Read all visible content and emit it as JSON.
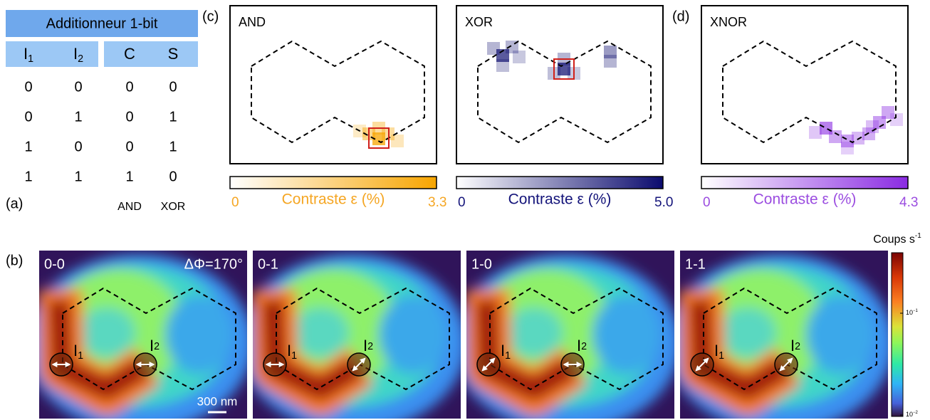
{
  "table": {
    "title": "Additionneur 1-bit",
    "headers": [
      {
        "main": "I",
        "sub": "1"
      },
      {
        "main": "I",
        "sub": "2"
      },
      {
        "main": "C"
      },
      {
        "main": "S"
      }
    ],
    "rows": [
      [
        "0",
        "0",
        "0",
        "0"
      ],
      [
        "0",
        "1",
        "0",
        "1"
      ],
      [
        "1",
        "0",
        "0",
        "1"
      ],
      [
        "1",
        "1",
        "1",
        "0"
      ]
    ],
    "footer": [
      "AND",
      "XOR"
    ],
    "label": "(a)"
  },
  "gate_maps": {
    "label_c": "(c)",
    "label_d": "(d)",
    "panels": [
      {
        "gate": "AND",
        "scale_min": "0",
        "axis_label": "Contraste ε (%)",
        "scale_max": "3.3"
      },
      {
        "gate": "XOR",
        "scale_min": "0",
        "axis_label": "Contraste ε (%)",
        "scale_max": "5.0"
      },
      {
        "gate": "XNOR",
        "scale_min": "0",
        "axis_label": "Contraste ε (%)",
        "scale_max": "4.3"
      }
    ]
  },
  "intensity_maps": {
    "label": "(b)",
    "phase": "ΔΦ=170°",
    "scale_bar": "300 nm",
    "input_labels": [
      {
        "main": "I",
        "sub": "1"
      },
      {
        "main": "I",
        "sub": "2"
      }
    ],
    "colorbar_title": {
      "main": "Coups s",
      "sup": "-1"
    },
    "colorbar_ticks": [
      {
        "base": "10",
        "exp": "−1"
      },
      {
        "base": "10",
        "exp": "−2"
      }
    ],
    "panels": [
      {
        "state": "0-0"
      },
      {
        "state": "0-1"
      },
      {
        "state": "1-0"
      },
      {
        "state": "1-1"
      }
    ]
  }
}
